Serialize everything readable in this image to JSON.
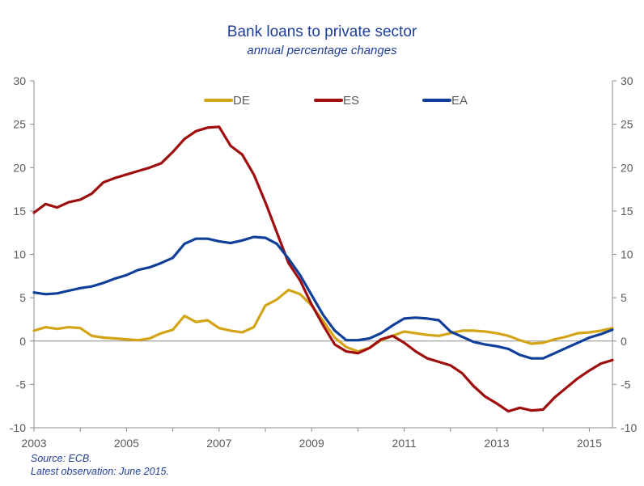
{
  "chart_data": {
    "type": "line",
    "title": "Bank loans to private sector",
    "subtitle": "annual percentage changes",
    "xlabel": "",
    "ylabel": "",
    "ylim": [
      -10,
      30
    ],
    "y_ticks": [
      30,
      25,
      20,
      15,
      10,
      5,
      0,
      -5,
      -10
    ],
    "y_tick_labels": [
      "30",
      "25",
      "20",
      "15",
      "10",
      "5",
      "0",
      "-5",
      "-10"
    ],
    "x_ticks": [
      "2003",
      "2005",
      "2007",
      "2009",
      "2011",
      "2013",
      "2015"
    ],
    "x_range": [
      2003.0,
      2015.5
    ],
    "grid": false,
    "legend_position": "top-center",
    "series": [
      {
        "name": "DE",
        "color": "#d4a417",
        "points": [
          [
            2003.0,
            1.2
          ],
          [
            2003.25,
            1.6
          ],
          [
            2003.5,
            1.4
          ],
          [
            2003.75,
            1.6
          ],
          [
            2004.0,
            1.5
          ],
          [
            2004.25,
            0.6
          ],
          [
            2004.5,
            0.4
          ],
          [
            2004.75,
            0.3
          ],
          [
            2005.0,
            0.2
          ],
          [
            2005.25,
            0.1
          ],
          [
            2005.5,
            0.3
          ],
          [
            2005.75,
            0.9
          ],
          [
            2006.0,
            1.3
          ],
          [
            2006.25,
            2.9
          ],
          [
            2006.5,
            2.2
          ],
          [
            2006.75,
            2.4
          ],
          [
            2007.0,
            1.5
          ],
          [
            2007.25,
            1.2
          ],
          [
            2007.5,
            1.0
          ],
          [
            2007.75,
            1.6
          ],
          [
            2008.0,
            4.1
          ],
          [
            2008.25,
            4.8
          ],
          [
            2008.5,
            5.9
          ],
          [
            2008.75,
            5.4
          ],
          [
            2009.0,
            4.1
          ],
          [
            2009.25,
            2.3
          ],
          [
            2009.5,
            0.4
          ],
          [
            2009.75,
            -0.7
          ],
          [
            2010.0,
            -1.2
          ],
          [
            2010.25,
            -0.8
          ],
          [
            2010.5,
            0.1
          ],
          [
            2010.75,
            0.6
          ],
          [
            2011.0,
            1.1
          ],
          [
            2011.25,
            0.9
          ],
          [
            2011.5,
            0.7
          ],
          [
            2011.75,
            0.6
          ],
          [
            2012.0,
            0.9
          ],
          [
            2012.25,
            1.2
          ],
          [
            2012.5,
            1.2
          ],
          [
            2012.75,
            1.1
          ],
          [
            2013.0,
            0.9
          ],
          [
            2013.25,
            0.6
          ],
          [
            2013.5,
            0.1
          ],
          [
            2013.75,
            -0.3
          ],
          [
            2014.0,
            -0.2
          ],
          [
            2014.25,
            0.2
          ],
          [
            2014.5,
            0.5
          ],
          [
            2014.75,
            0.9
          ],
          [
            2015.0,
            1.0
          ],
          [
            2015.25,
            1.2
          ],
          [
            2015.5,
            1.5
          ]
        ]
      },
      {
        "name": "ES",
        "color": "#a00d0d",
        "points": [
          [
            2003.0,
            14.8
          ],
          [
            2003.25,
            15.8
          ],
          [
            2003.5,
            15.4
          ],
          [
            2003.75,
            16.0
          ],
          [
            2004.0,
            16.3
          ],
          [
            2004.25,
            17.0
          ],
          [
            2004.5,
            18.3
          ],
          [
            2004.75,
            18.8
          ],
          [
            2005.0,
            19.2
          ],
          [
            2005.25,
            19.6
          ],
          [
            2005.5,
            20.0
          ],
          [
            2005.75,
            20.5
          ],
          [
            2006.0,
            21.8
          ],
          [
            2006.25,
            23.3
          ],
          [
            2006.5,
            24.2
          ],
          [
            2006.75,
            24.6
          ],
          [
            2007.0,
            24.7
          ],
          [
            2007.25,
            22.5
          ],
          [
            2007.5,
            21.5
          ],
          [
            2007.75,
            19.2
          ],
          [
            2008.0,
            16.0
          ],
          [
            2008.25,
            12.5
          ],
          [
            2008.5,
            9.0
          ],
          [
            2008.75,
            7.0
          ],
          [
            2009.0,
            4.2
          ],
          [
            2009.25,
            1.8
          ],
          [
            2009.5,
            -0.4
          ],
          [
            2009.75,
            -1.2
          ],
          [
            2010.0,
            -1.4
          ],
          [
            2010.25,
            -0.8
          ],
          [
            2010.5,
            0.2
          ],
          [
            2010.75,
            0.6
          ],
          [
            2011.0,
            -0.2
          ],
          [
            2011.25,
            -1.2
          ],
          [
            2011.5,
            -2.0
          ],
          [
            2011.75,
            -2.4
          ],
          [
            2012.0,
            -2.8
          ],
          [
            2012.25,
            -3.7
          ],
          [
            2012.5,
            -5.2
          ],
          [
            2012.75,
            -6.4
          ],
          [
            2013.0,
            -7.2
          ],
          [
            2013.25,
            -8.1
          ],
          [
            2013.5,
            -7.7
          ],
          [
            2013.75,
            -8.0
          ],
          [
            2014.0,
            -7.9
          ],
          [
            2014.25,
            -6.5
          ],
          [
            2014.5,
            -5.4
          ],
          [
            2014.75,
            -4.3
          ],
          [
            2015.0,
            -3.4
          ],
          [
            2015.25,
            -2.6
          ],
          [
            2015.5,
            -2.2
          ]
        ]
      },
      {
        "name": "EA",
        "color": "#0f3f99",
        "points": [
          [
            2003.0,
            5.6
          ],
          [
            2003.25,
            5.4
          ],
          [
            2003.5,
            5.5
          ],
          [
            2003.75,
            5.8
          ],
          [
            2004.0,
            6.1
          ],
          [
            2004.25,
            6.3
          ],
          [
            2004.5,
            6.7
          ],
          [
            2004.75,
            7.2
          ],
          [
            2005.0,
            7.6
          ],
          [
            2005.25,
            8.2
          ],
          [
            2005.5,
            8.5
          ],
          [
            2005.75,
            9.0
          ],
          [
            2006.0,
            9.6
          ],
          [
            2006.25,
            11.2
          ],
          [
            2006.5,
            11.8
          ],
          [
            2006.75,
            11.8
          ],
          [
            2007.0,
            11.5
          ],
          [
            2007.25,
            11.3
          ],
          [
            2007.5,
            11.6
          ],
          [
            2007.75,
            12.0
          ],
          [
            2008.0,
            11.9
          ],
          [
            2008.25,
            11.2
          ],
          [
            2008.5,
            9.5
          ],
          [
            2008.75,
            7.6
          ],
          [
            2009.0,
            5.3
          ],
          [
            2009.25,
            3.0
          ],
          [
            2009.5,
            1.2
          ],
          [
            2009.75,
            0.1
          ],
          [
            2010.0,
            0.1
          ],
          [
            2010.25,
            0.3
          ],
          [
            2010.5,
            0.9
          ],
          [
            2010.75,
            1.8
          ],
          [
            2011.0,
            2.6
          ],
          [
            2011.25,
            2.7
          ],
          [
            2011.5,
            2.6
          ],
          [
            2011.75,
            2.4
          ],
          [
            2012.0,
            1.1
          ],
          [
            2012.25,
            0.5
          ],
          [
            2012.5,
            -0.1
          ],
          [
            2012.75,
            -0.4
          ],
          [
            2013.0,
            -0.6
          ],
          [
            2013.25,
            -0.9
          ],
          [
            2013.5,
            -1.6
          ],
          [
            2013.75,
            -2.0
          ],
          [
            2014.0,
            -2.0
          ],
          [
            2014.25,
            -1.4
          ],
          [
            2014.5,
            -0.8
          ],
          [
            2014.75,
            -0.2
          ],
          [
            2015.0,
            0.4
          ],
          [
            2015.25,
            0.8
          ],
          [
            2015.5,
            1.3
          ]
        ]
      }
    ]
  },
  "notes": {
    "source": "Source: ECB.",
    "latest": "Latest observation: June  2015."
  }
}
